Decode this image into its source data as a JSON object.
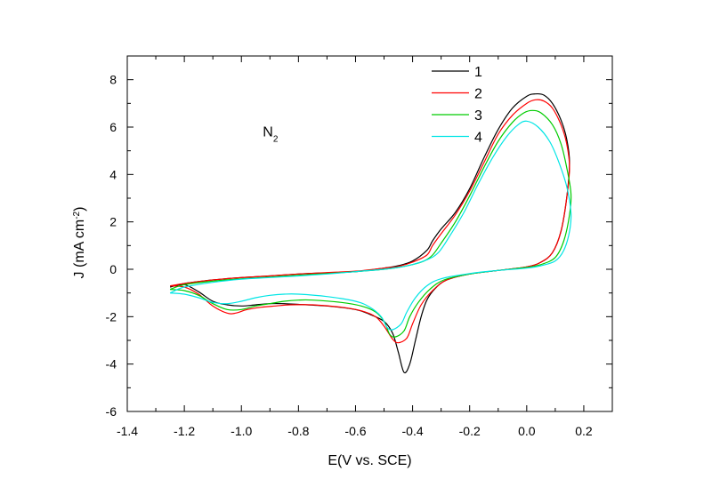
{
  "chart_data": {
    "type": "line",
    "title": "",
    "xlabel": "E(V vs. SCE)",
    "ylabel_parts": {
      "pre": "J (mA cm",
      "sup": "-2",
      "post": ")"
    },
    "xlim": [
      -1.4,
      0.3
    ],
    "ylim": [
      -6,
      9
    ],
    "xticks": [
      -1.4,
      -1.2,
      -1.0,
      -0.8,
      -0.6,
      -0.4,
      -0.2,
      0.0,
      0.2
    ],
    "xtick_labels": [
      "-1.4",
      "-1.2",
      "-1.0",
      "-0.8",
      "-0.6",
      "-0.4",
      "-0.2",
      "0.0",
      "0.2"
    ],
    "yticks": [
      -6,
      -4,
      -2,
      0,
      2,
      4,
      6,
      8
    ],
    "ytick_labels": [
      "-6",
      "-4",
      "-2",
      "0",
      "2",
      "4",
      "6",
      "8"
    ],
    "legend_position": "top-right",
    "annotation": {
      "main": "N",
      "sub": "2"
    },
    "series": [
      {
        "name": "1",
        "color": "#000000",
        "points": [
          [
            -1.25,
            -0.75
          ],
          [
            -1.2,
            -0.65
          ],
          [
            -1.15,
            -0.95
          ],
          [
            -1.1,
            -1.35
          ],
          [
            -1.05,
            -1.5
          ],
          [
            -1.0,
            -1.55
          ],
          [
            -0.95,
            -1.5
          ],
          [
            -0.9,
            -1.45
          ],
          [
            -0.85,
            -1.45
          ],
          [
            -0.8,
            -1.48
          ],
          [
            -0.7,
            -1.55
          ],
          [
            -0.6,
            -1.7
          ],
          [
            -0.55,
            -1.9
          ],
          [
            -0.5,
            -2.2
          ],
          [
            -0.47,
            -2.7
          ],
          [
            -0.45,
            -3.5
          ],
          [
            -0.43,
            -4.35
          ],
          [
            -0.41,
            -4.0
          ],
          [
            -0.39,
            -3.0
          ],
          [
            -0.37,
            -2.0
          ],
          [
            -0.35,
            -1.3
          ],
          [
            -0.32,
            -0.8
          ],
          [
            -0.28,
            -0.45
          ],
          [
            -0.2,
            -0.2
          ],
          [
            -0.1,
            -0.05
          ],
          [
            0.0,
            0.1
          ],
          [
            0.05,
            0.3
          ],
          [
            0.09,
            0.7
          ],
          [
            0.12,
            1.6
          ],
          [
            0.14,
            3.0
          ],
          [
            0.15,
            4.5
          ],
          [
            0.14,
            5.5
          ],
          [
            0.12,
            6.3
          ],
          [
            0.09,
            7.0
          ],
          [
            0.06,
            7.35
          ],
          [
            0.03,
            7.4
          ],
          [
            0.0,
            7.3
          ],
          [
            -0.05,
            6.8
          ],
          [
            -0.1,
            5.9
          ],
          [
            -0.15,
            4.7
          ],
          [
            -0.2,
            3.4
          ],
          [
            -0.25,
            2.4
          ],
          [
            -0.3,
            1.7
          ],
          [
            -0.33,
            1.2
          ],
          [
            -0.35,
            0.8
          ],
          [
            -0.4,
            0.35
          ],
          [
            -0.45,
            0.15
          ],
          [
            -0.5,
            0.05
          ],
          [
            -0.6,
            -0.1
          ],
          [
            -0.7,
            -0.15
          ],
          [
            -0.8,
            -0.2
          ],
          [
            -0.9,
            -0.28
          ],
          [
            -1.0,
            -0.35
          ],
          [
            -1.1,
            -0.45
          ],
          [
            -1.2,
            -0.6
          ],
          [
            -1.25,
            -0.75
          ]
        ]
      },
      {
        "name": "2",
        "color": "#ff0000",
        "points": [
          [
            -1.25,
            -0.7
          ],
          [
            -1.2,
            -0.75
          ],
          [
            -1.15,
            -1.05
          ],
          [
            -1.1,
            -1.55
          ],
          [
            -1.05,
            -1.85
          ],
          [
            -1.02,
            -1.85
          ],
          [
            -0.98,
            -1.7
          ],
          [
            -0.93,
            -1.6
          ],
          [
            -0.88,
            -1.55
          ],
          [
            -0.83,
            -1.5
          ],
          [
            -0.75,
            -1.5
          ],
          [
            -0.65,
            -1.6
          ],
          [
            -0.58,
            -1.75
          ],
          [
            -0.53,
            -2.0
          ],
          [
            -0.5,
            -2.4
          ],
          [
            -0.47,
            -2.95
          ],
          [
            -0.45,
            -3.1
          ],
          [
            -0.42,
            -2.9
          ],
          [
            -0.4,
            -2.3
          ],
          [
            -0.37,
            -1.5
          ],
          [
            -0.33,
            -0.9
          ],
          [
            -0.28,
            -0.45
          ],
          [
            -0.2,
            -0.2
          ],
          [
            -0.1,
            -0.05
          ],
          [
            0.0,
            0.1
          ],
          [
            0.05,
            0.3
          ],
          [
            0.09,
            0.7
          ],
          [
            0.12,
            1.6
          ],
          [
            0.14,
            3.0
          ],
          [
            0.15,
            4.3
          ],
          [
            0.14,
            5.3
          ],
          [
            0.12,
            6.1
          ],
          [
            0.09,
            6.8
          ],
          [
            0.06,
            7.1
          ],
          [
            0.03,
            7.15
          ],
          [
            0.0,
            7.0
          ],
          [
            -0.05,
            6.5
          ],
          [
            -0.1,
            5.7
          ],
          [
            -0.15,
            4.5
          ],
          [
            -0.2,
            3.3
          ],
          [
            -0.25,
            2.3
          ],
          [
            -0.3,
            1.5
          ],
          [
            -0.33,
            1.0
          ],
          [
            -0.35,
            0.6
          ],
          [
            -0.4,
            0.3
          ],
          [
            -0.45,
            0.12
          ],
          [
            -0.5,
            0.05
          ],
          [
            -0.6,
            -0.08
          ],
          [
            -0.7,
            -0.14
          ],
          [
            -0.8,
            -0.2
          ],
          [
            -0.9,
            -0.28
          ],
          [
            -1.0,
            -0.35
          ],
          [
            -1.1,
            -0.45
          ],
          [
            -1.2,
            -0.6
          ],
          [
            -1.25,
            -0.7
          ]
        ]
      },
      {
        "name": "3",
        "color": "#00cc00",
        "points": [
          [
            -1.25,
            -0.85
          ],
          [
            -1.2,
            -0.9
          ],
          [
            -1.15,
            -1.1
          ],
          [
            -1.1,
            -1.45
          ],
          [
            -1.05,
            -1.7
          ],
          [
            -1.0,
            -1.7
          ],
          [
            -0.95,
            -1.55
          ],
          [
            -0.9,
            -1.45
          ],
          [
            -0.85,
            -1.35
          ],
          [
            -0.8,
            -1.3
          ],
          [
            -0.75,
            -1.3
          ],
          [
            -0.65,
            -1.4
          ],
          [
            -0.58,
            -1.55
          ],
          [
            -0.53,
            -1.8
          ],
          [
            -0.5,
            -2.2
          ],
          [
            -0.48,
            -2.75
          ],
          [
            -0.46,
            -2.85
          ],
          [
            -0.43,
            -2.6
          ],
          [
            -0.41,
            -2.0
          ],
          [
            -0.38,
            -1.4
          ],
          [
            -0.34,
            -0.85
          ],
          [
            -0.29,
            -0.45
          ],
          [
            -0.2,
            -0.2
          ],
          [
            -0.1,
            -0.05
          ],
          [
            0.0,
            0.08
          ],
          [
            0.05,
            0.2
          ],
          [
            0.1,
            0.5
          ],
          [
            0.13,
            1.2
          ],
          [
            0.15,
            2.3
          ],
          [
            0.155,
            3.2
          ],
          [
            0.14,
            4.3
          ],
          [
            0.12,
            5.3
          ],
          [
            0.09,
            6.1
          ],
          [
            0.05,
            6.6
          ],
          [
            0.02,
            6.7
          ],
          [
            -0.01,
            6.6
          ],
          [
            -0.05,
            6.2
          ],
          [
            -0.1,
            5.4
          ],
          [
            -0.15,
            4.3
          ],
          [
            -0.2,
            3.1
          ],
          [
            -0.25,
            2.0
          ],
          [
            -0.3,
            1.1
          ],
          [
            -0.33,
            0.6
          ],
          [
            -0.36,
            0.35
          ],
          [
            -0.4,
            0.2
          ],
          [
            -0.45,
            0.08
          ],
          [
            -0.5,
            0.0
          ],
          [
            -0.6,
            -0.1
          ],
          [
            -0.7,
            -0.18
          ],
          [
            -0.8,
            -0.25
          ],
          [
            -0.9,
            -0.33
          ],
          [
            -1.0,
            -0.4
          ],
          [
            -1.1,
            -0.5
          ],
          [
            -1.2,
            -0.65
          ],
          [
            -1.25,
            -0.85
          ]
        ]
      },
      {
        "name": "4",
        "color": "#00e5e5",
        "points": [
          [
            -1.25,
            -1.0
          ],
          [
            -1.2,
            -1.05
          ],
          [
            -1.15,
            -1.2
          ],
          [
            -1.1,
            -1.4
          ],
          [
            -1.05,
            -1.45
          ],
          [
            -1.0,
            -1.35
          ],
          [
            -0.95,
            -1.2
          ],
          [
            -0.9,
            -1.1
          ],
          [
            -0.85,
            -1.05
          ],
          [
            -0.8,
            -1.05
          ],
          [
            -0.7,
            -1.15
          ],
          [
            -0.6,
            -1.35
          ],
          [
            -0.55,
            -1.6
          ],
          [
            -0.51,
            -2.0
          ],
          [
            -0.49,
            -2.45
          ],
          [
            -0.47,
            -2.55
          ],
          [
            -0.44,
            -2.3
          ],
          [
            -0.42,
            -1.8
          ],
          [
            -0.39,
            -1.2
          ],
          [
            -0.35,
            -0.7
          ],
          [
            -0.3,
            -0.4
          ],
          [
            -0.2,
            -0.18
          ],
          [
            -0.1,
            -0.05
          ],
          [
            0.0,
            0.05
          ],
          [
            0.05,
            0.15
          ],
          [
            0.1,
            0.35
          ],
          [
            0.13,
            0.8
          ],
          [
            0.15,
            1.6
          ],
          [
            0.155,
            2.4
          ],
          [
            0.14,
            3.5
          ],
          [
            0.11,
            4.6
          ],
          [
            0.08,
            5.4
          ],
          [
            0.04,
            6.0
          ],
          [
            0.0,
            6.25
          ],
          [
            -0.03,
            6.1
          ],
          [
            -0.07,
            5.6
          ],
          [
            -0.12,
            4.7
          ],
          [
            -0.17,
            3.6
          ],
          [
            -0.22,
            2.4
          ],
          [
            -0.27,
            1.4
          ],
          [
            -0.31,
            0.7
          ],
          [
            -0.35,
            0.4
          ],
          [
            -0.4,
            0.2
          ],
          [
            -0.45,
            0.08
          ],
          [
            -0.5,
            0.0
          ],
          [
            -0.6,
            -0.1
          ],
          [
            -0.7,
            -0.2
          ],
          [
            -0.8,
            -0.28
          ],
          [
            -0.9,
            -0.35
          ],
          [
            -1.0,
            -0.42
          ],
          [
            -1.1,
            -0.55
          ],
          [
            -1.2,
            -0.75
          ],
          [
            -1.25,
            -1.0
          ]
        ]
      }
    ]
  }
}
